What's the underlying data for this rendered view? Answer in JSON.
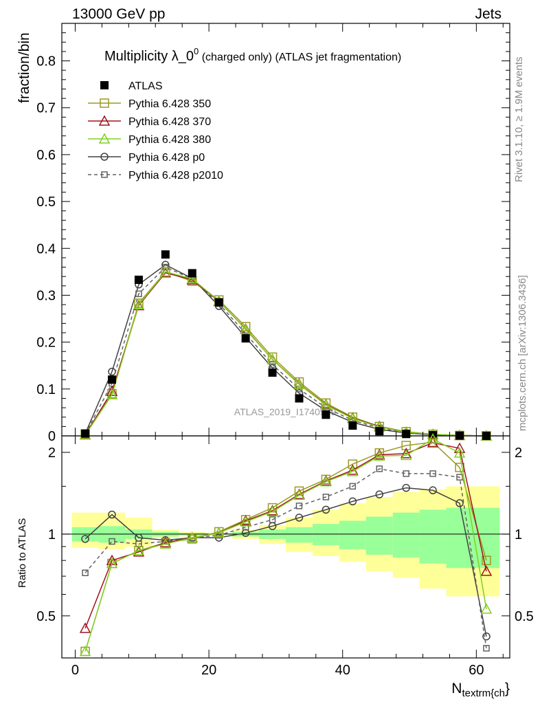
{
  "header": {
    "left": "13000 GeV pp",
    "right": "Jets"
  },
  "side_labels": {
    "rivet": "Rivet 3.1.10, ≥ 1.9M events",
    "mcplots": "mcplots.cern.ch [arXiv:1306.3436]"
  },
  "chart_data": [
    {
      "type": "line",
      "panel": "main",
      "title": "Multiplicity λ_0⁰ (charged only) (ATLAS jet fragmentation)",
      "title_main": "Multiplicity λ_0",
      "title_sup": "0",
      "title_tail": " (charged only) (ATLAS jet fragmentation)",
      "ylabel": "fraction/bin",
      "xlim": [
        -2,
        65
      ],
      "ylim": [
        0,
        0.88
      ],
      "yticks": [
        0,
        0.1,
        0.2,
        0.3,
        0.4,
        0.5,
        0.6,
        0.7,
        0.8
      ],
      "ytick_labels": [
        "0",
        "0.1",
        "0.2",
        "0.3",
        "0.4",
        "0.5",
        "0.6",
        "0.7",
        "0.8"
      ],
      "watermark": "ATLAS_2019_I1740909",
      "legend_position": "top-left",
      "x": [
        1.5,
        5.5,
        9.5,
        13.5,
        17.5,
        21.5,
        25.5,
        29.5,
        33.5,
        37.5,
        41.5,
        45.5,
        49.5,
        53.5,
        57.5,
        61.5
      ],
      "series": [
        {
          "name": "ATLAS",
          "color": "#000000",
          "marker": "filled-square",
          "line": "none",
          "values": [
            0.005,
            0.12,
            0.333,
            0.387,
            0.347,
            0.285,
            0.208,
            0.135,
            0.08,
            0.045,
            0.022,
            0.01,
            0.004,
            0.0015,
            0.0005,
            0.0001
          ]
        },
        {
          "name": "Pythia 6.428 350",
          "color": "#9a9a20",
          "marker": "open-square",
          "line": "solid",
          "values": [
            0.004,
            0.09,
            0.283,
            0.35,
            0.33,
            0.29,
            0.233,
            0.168,
            0.115,
            0.07,
            0.04,
            0.02,
            0.009,
            0.0035,
            0.0009,
            8e-05
          ]
        },
        {
          "name": "Pythia 6.428 370",
          "color": "#a01020",
          "marker": "open-triangle",
          "line": "solid",
          "values": [
            0.0022,
            0.095,
            0.278,
            0.348,
            0.333,
            0.287,
            0.228,
            0.163,
            0.111,
            0.067,
            0.038,
            0.02,
            0.008,
            0.0033,
            0.001,
            7e-05
          ]
        },
        {
          "name": "Pythia 6.428 380",
          "color": "#80d020",
          "marker": "open-triangle",
          "line": "solid",
          "values": [
            0.0018,
            0.088,
            0.28,
            0.35,
            0.335,
            0.288,
            0.227,
            0.163,
            0.11,
            0.066,
            0.037,
            0.019,
            0.008,
            0.0034,
            0.001,
            5e-05
          ]
        },
        {
          "name": "Pythia 6.428 p0",
          "color": "#404040",
          "marker": "open-circle",
          "line": "solid",
          "values": [
            0.0048,
            0.137,
            0.323,
            0.365,
            0.336,
            0.277,
            0.21,
            0.145,
            0.091,
            0.054,
            0.029,
            0.014,
            0.006,
            0.0022,
            0.0007,
            4e-05
          ]
        },
        {
          "name": "Pythia 6.428 p2010",
          "color": "#606060",
          "marker": "open-square",
          "line": "dashed",
          "values": [
            0.0036,
            0.112,
            0.303,
            0.36,
            0.335,
            0.282,
            0.218,
            0.152,
            0.1,
            0.06,
            0.033,
            0.017,
            0.0066,
            0.0025,
            0.0008,
            4e-05
          ]
        }
      ]
    },
    {
      "type": "line",
      "panel": "ratio",
      "ylabel": "Ratio to ATLAS",
      "xlabel": "N_{textrm{ch}}",
      "xlabel_main": "N",
      "xlabel_sub": "textrm{ch",
      "xlabel_tail": "}",
      "xlim": [
        -2,
        65
      ],
      "ylim": [
        0.35,
        2.3
      ],
      "xticks": [
        0,
        20,
        40,
        60
      ],
      "xtick_labels": [
        "0",
        "20",
        "40",
        "60"
      ],
      "yticks": [
        0.5,
        1,
        2
      ],
      "ytick_labels": [
        "0.5",
        "1",
        "2"
      ],
      "bands": {
        "bin_edges": [
          -0.5,
          3.5,
          7.5,
          11.5,
          15.5,
          19.5,
          23.5,
          27.5,
          31.5,
          35.5,
          39.5,
          43.5,
          47.5,
          51.5,
          55.5,
          59.5,
          63.5
        ],
        "outer_low": [
          0.89,
          0.88,
          0.9,
          0.97,
          0.98,
          0.99,
          0.96,
          0.92,
          0.86,
          0.83,
          0.79,
          0.73,
          0.69,
          0.63,
          0.59,
          0.59
        ],
        "outer_high": [
          1.2,
          1.2,
          1.15,
          1.04,
          1.02,
          1.01,
          1.04,
          1.08,
          1.15,
          1.23,
          1.3,
          1.37,
          1.43,
          1.46,
          1.5,
          1.5
        ],
        "inner_low": [
          0.94,
          0.93,
          0.96,
          0.98,
          0.99,
          0.995,
          0.98,
          0.96,
          0.93,
          0.91,
          0.88,
          0.84,
          0.82,
          0.78,
          0.75,
          0.75
        ],
        "inner_high": [
          1.06,
          1.07,
          1.04,
          1.02,
          1.01,
          1.005,
          1.02,
          1.04,
          1.06,
          1.09,
          1.12,
          1.16,
          1.2,
          1.23,
          1.25,
          1.25
        ]
      },
      "x": [
        1.5,
        5.5,
        9.5,
        13.5,
        17.5,
        21.5,
        25.5,
        29.5,
        33.5,
        37.5,
        41.5,
        45.5,
        49.5,
        53.5,
        57.5,
        61.5
      ],
      "series": [
        {
          "name": "Pythia 6.428 350",
          "values": [
            0.37,
            0.78,
            0.87,
            0.93,
            0.96,
            1.02,
            1.13,
            1.25,
            1.44,
            1.59,
            1.81,
            1.99,
            2.12,
            2.18,
            1.76,
            0.8
          ]
        },
        {
          "name": "Pythia 6.428 370",
          "values": [
            0.45,
            0.8,
            0.86,
            0.93,
            0.97,
            1.01,
            1.12,
            1.22,
            1.4,
            1.57,
            1.72,
            1.96,
            1.98,
            2.17,
            2.07,
            0.73
          ]
        },
        {
          "name": "Pythia 6.428 380",
          "values": [
            0.37,
            0.78,
            0.87,
            0.92,
            0.97,
            1.01,
            1.11,
            1.21,
            1.39,
            1.56,
            1.7,
            1.94,
            1.95,
            2.24,
            1.99,
            0.53
          ]
        },
        {
          "name": "Pythia 6.428 p0",
          "values": [
            0.96,
            1.18,
            0.97,
            0.95,
            0.97,
            0.97,
            1.01,
            1.07,
            1.15,
            1.23,
            1.32,
            1.4,
            1.48,
            1.45,
            1.3,
            0.42
          ]
        },
        {
          "name": "Pythia 6.428 p2010",
          "values": [
            0.72,
            0.94,
            0.92,
            0.94,
            0.97,
            0.99,
            1.06,
            1.13,
            1.27,
            1.37,
            1.5,
            1.74,
            1.67,
            1.67,
            1.62,
            0.38
          ]
        }
      ]
    }
  ]
}
